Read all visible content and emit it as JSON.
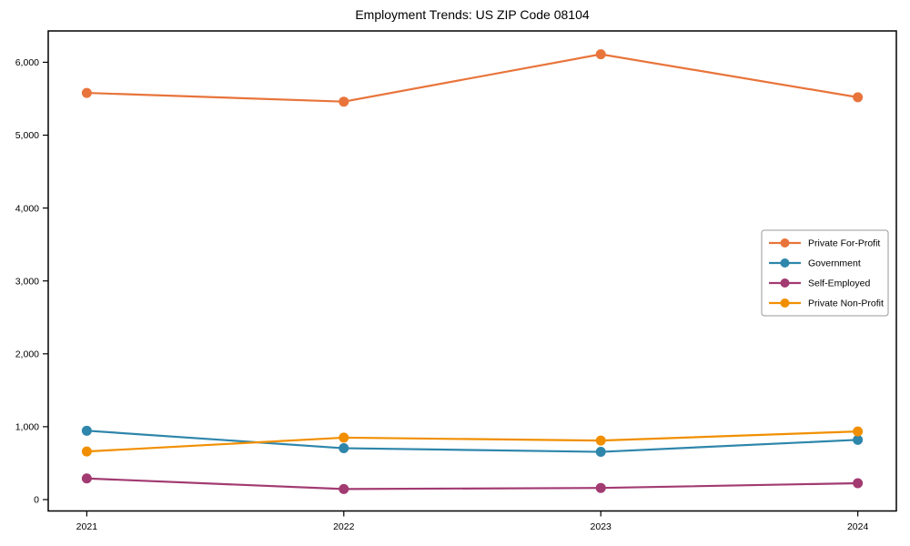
{
  "page": {
    "background": "#ffffff"
  },
  "chart_data": {
    "type": "line",
    "title": "Employment Trends: US ZIP Code 08104",
    "categories": [
      "2021",
      "2022",
      "2023",
      "2024"
    ],
    "series": [
      {
        "name": "Private For-Profit",
        "color": "#E8743B",
        "values": [
          5580,
          5460,
          6110,
          5520
        ]
      },
      {
        "name": "Government",
        "color": "#2E86AB",
        "values": [
          945,
          705,
          655,
          820
        ]
      },
      {
        "name": "Self-Employed",
        "color": "#A23B72",
        "values": [
          290,
          145,
          160,
          225
        ]
      },
      {
        "name": "Private Non-Profit",
        "color": "#F18F01",
        "values": [
          660,
          850,
          810,
          935
        ]
      }
    ],
    "xlabel": "",
    "ylabel": "",
    "ylim": [
      -156,
      6430
    ],
    "yticks": [
      0,
      1000,
      2000,
      3000,
      4000,
      5000,
      6000
    ],
    "ytick_labels": [
      "0",
      "1,000",
      "2,000",
      "3,000",
      "4,000",
      "5,000",
      "6,000"
    ],
    "grid": false,
    "legend_position": "right-middle",
    "marker": "circle",
    "axis_color": "#000000",
    "legend_border_color": "#999999"
  }
}
